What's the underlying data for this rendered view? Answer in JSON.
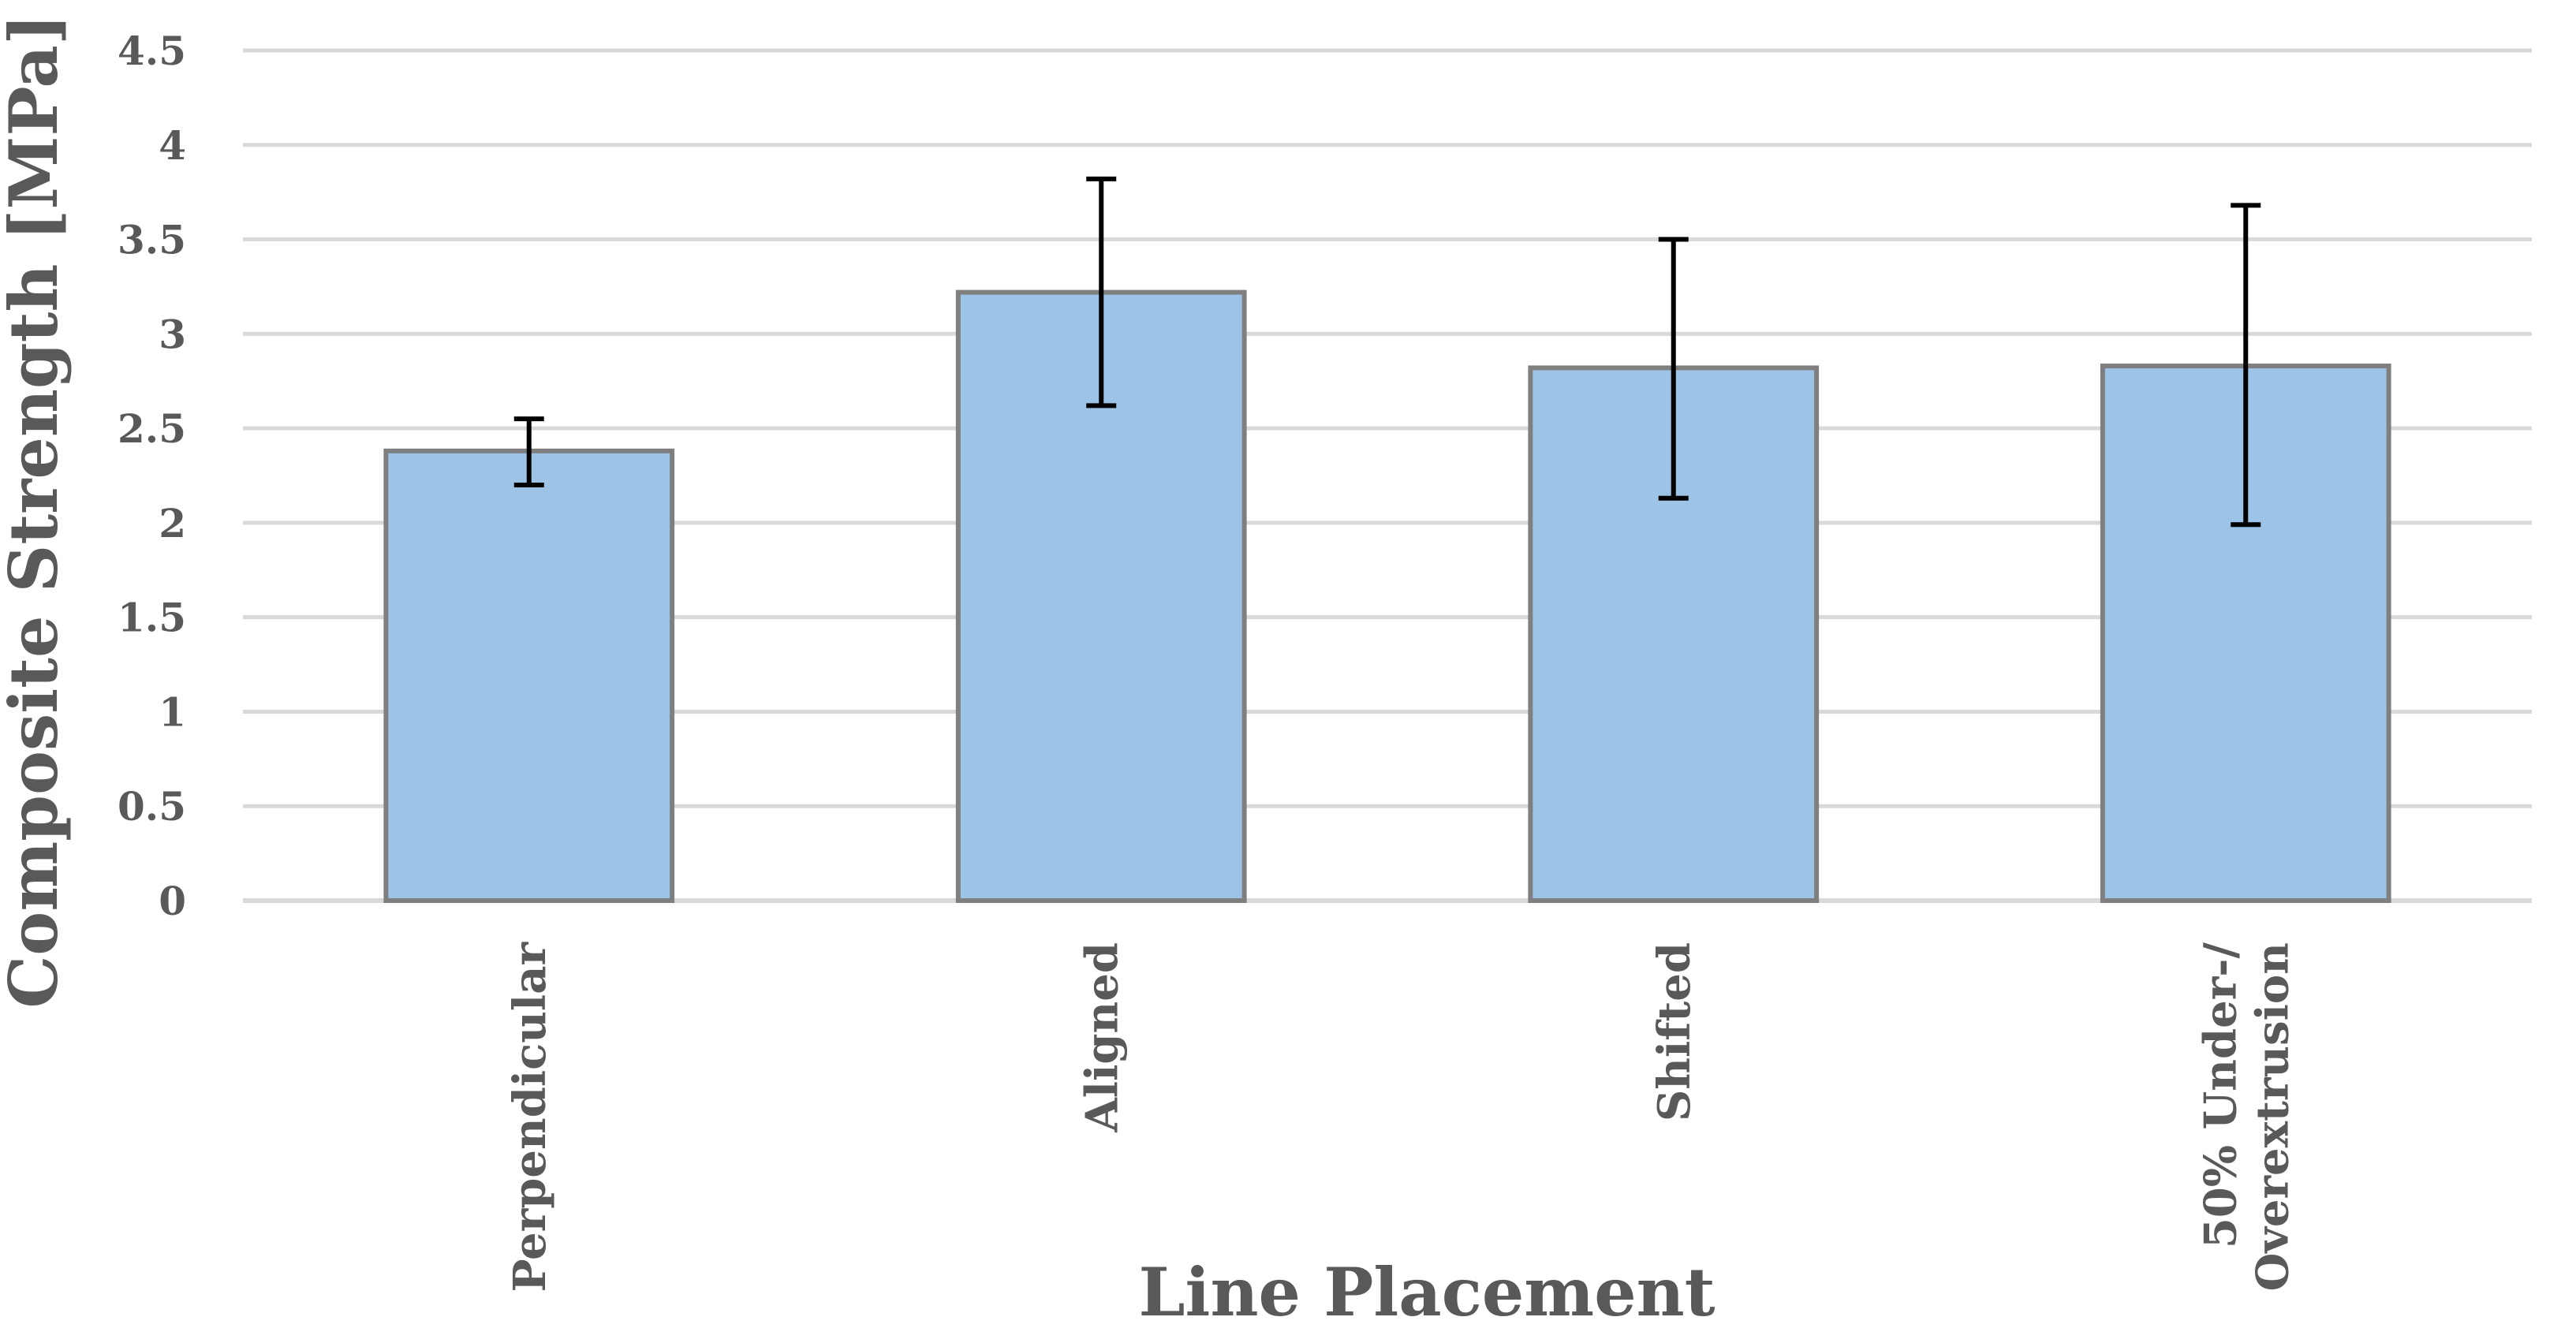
{
  "chart_data": {
    "type": "bar",
    "title": "",
    "xlabel": "Line Placement",
    "ylabel": "Composite Strength [MPa]",
    "ylim": [
      0,
      4.5
    ],
    "yticks": [
      "0",
      "0.5",
      "1",
      "1.5",
      "2",
      "2.5",
      "3",
      "3.5",
      "4",
      "4.5"
    ],
    "grid": true,
    "legend": "none",
    "categories": [
      [
        "Perpendicular"
      ],
      [
        "Aligned"
      ],
      [
        "Shifted"
      ],
      [
        "50% Under-/",
        "Overextrusion"
      ]
    ],
    "values": [
      2.38,
      3.22,
      2.82,
      2.83
    ],
    "error_low": [
      2.2,
      2.62,
      2.13,
      1.99
    ],
    "error_high": [
      2.55,
      3.82,
      3.5,
      3.68
    ],
    "colors": {
      "bar_fill": "#9dc3e6",
      "bar_stroke": "#7f7f7f",
      "grid": "#d9d9d9",
      "error_bar": "#000000",
      "text": "#595959"
    }
  }
}
